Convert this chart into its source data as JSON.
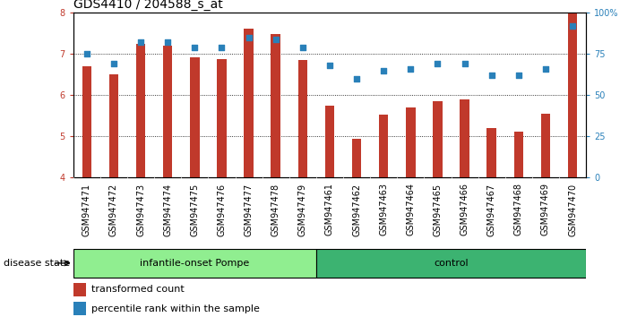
{
  "title": "GDS4410 / 204588_s_at",
  "samples": [
    "GSM947471",
    "GSM947472",
    "GSM947473",
    "GSM947474",
    "GSM947475",
    "GSM947476",
    "GSM947477",
    "GSM947478",
    "GSM947479",
    "GSM947461",
    "GSM947462",
    "GSM947463",
    "GSM947464",
    "GSM947465",
    "GSM947466",
    "GSM947467",
    "GSM947468",
    "GSM947469",
    "GSM947470"
  ],
  "transformed_count": [
    6.7,
    6.5,
    7.25,
    7.2,
    6.92,
    6.88,
    7.62,
    7.48,
    6.85,
    5.75,
    4.95,
    5.52,
    5.7,
    5.85,
    5.9,
    5.2,
    5.12,
    5.55,
    8.0
  ],
  "percentile_rank": [
    75,
    69,
    82,
    82,
    79,
    79,
    85,
    84,
    79,
    68,
    60,
    65,
    66,
    69,
    69,
    62,
    62,
    66,
    92
  ],
  "n_group1": 9,
  "n_group2": 10,
  "bar_color": "#c0392b",
  "dot_color": "#2980b9",
  "bar_bottom": 4.0,
  "ylim_left": [
    4.0,
    8.0
  ],
  "ylim_right": [
    0,
    100
  ],
  "yticks_left": [
    4,
    5,
    6,
    7,
    8
  ],
  "yticks_right": [
    0,
    25,
    50,
    75,
    100
  ],
  "ytick_labels_right": [
    "0",
    "25",
    "50",
    "75",
    "100%"
  ],
  "group1_label": "infantile-onset Pompe",
  "group2_label": "control",
  "group1_color": "#90EE90",
  "group2_color": "#3CB371",
  "disease_state_label": "disease state",
  "legend1_label": "transformed count",
  "legend2_label": "percentile rank within the sample",
  "grid_color": "black",
  "xtick_bg_color": "#d3d3d3",
  "plot_bg": "white",
  "title_fontsize": 10,
  "tick_fontsize": 7,
  "label_fontsize": 8,
  "group_label_fontsize": 8
}
